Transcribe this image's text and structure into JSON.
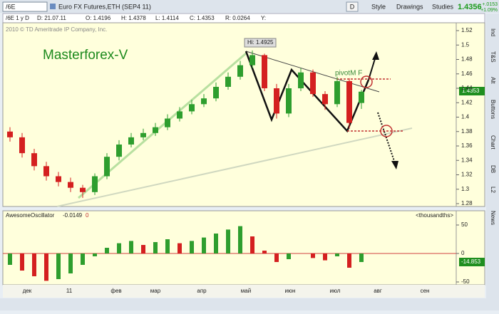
{
  "toolbar": {
    "symbol": "/6E",
    "description": "Euro FX Futures,ETH (SEP4 11)",
    "period": "D",
    "buttons": [
      "Style",
      "Drawings",
      "Studies"
    ],
    "last": "1.4356",
    "change": "+.0153",
    "change_pct": "+1.09%"
  },
  "info": {
    "items": [
      "/6E 1 y D",
      "D: 21.07.11",
      "O: 1.4196",
      "H: 1.4378",
      "L: 1.4114",
      "C: 1.4353",
      "R: 0.0264",
      "Y:"
    ]
  },
  "side_tabs": [
    "Ind",
    "T&S",
    "Alt",
    "Buttons",
    "Chart",
    "DB",
    "L2",
    "News"
  ],
  "chart_data": [
    {
      "type": "candlestick",
      "copyright": "2010 © TD Ameritrade IP Company, Inc.",
      "watermark": "Masterforex-V",
      "annotations": [
        "Hi: 1.4925",
        "pivotM F"
      ],
      "last_label": "1.4353",
      "categories": [
        null,
        null,
        null,
        null,
        null,
        null,
        null,
        null,
        null,
        null,
        null,
        null,
        null,
        null,
        null,
        null,
        null,
        null,
        null,
        null,
        null,
        null,
        null,
        null,
        null,
        null,
        null,
        null,
        null,
        null
      ],
      "open": [
        1.38,
        1.372,
        1.35,
        1.332,
        1.318,
        1.31,
        1.302,
        1.296,
        1.318,
        1.345,
        1.362,
        1.372,
        1.378,
        1.386,
        1.398,
        1.408,
        1.418,
        1.426,
        1.442,
        1.456,
        1.472,
        1.486,
        1.44,
        1.405,
        1.44,
        1.462,
        1.432,
        1.418,
        1.45,
        1.4196
      ],
      "high": [
        1.386,
        1.378,
        1.356,
        1.338,
        1.324,
        1.316,
        1.306,
        1.322,
        1.35,
        1.368,
        1.378,
        1.384,
        1.392,
        1.404,
        1.414,
        1.424,
        1.432,
        1.448,
        1.462,
        1.478,
        1.4925,
        1.488,
        1.446,
        1.446,
        1.468,
        1.466,
        1.436,
        1.456,
        1.454,
        1.4378
      ],
      "low": [
        1.366,
        1.344,
        1.326,
        1.312,
        1.304,
        1.296,
        1.288,
        1.292,
        1.314,
        1.34,
        1.358,
        1.368,
        1.374,
        1.382,
        1.394,
        1.404,
        1.414,
        1.422,
        1.438,
        1.452,
        1.468,
        1.436,
        1.398,
        1.4,
        1.436,
        1.428,
        1.41,
        1.414,
        1.384,
        1.4114
      ],
      "close": [
        1.372,
        1.35,
        1.332,
        1.318,
        1.31,
        1.302,
        1.296,
        1.318,
        1.345,
        1.362,
        1.372,
        1.378,
        1.386,
        1.398,
        1.408,
        1.418,
        1.426,
        1.442,
        1.456,
        1.472,
        1.486,
        1.44,
        1.405,
        1.44,
        1.462,
        1.432,
        1.418,
        1.45,
        1.392,
        1.4353
      ],
      "up_color": "#2e9e2e",
      "down_color": "#d42020",
      "ylim": [
        1.28,
        1.52
      ],
      "yticks": [
        1.52,
        1.5,
        1.48,
        1.46,
        1.44,
        1.42,
        1.4,
        1.38,
        1.36,
        1.34,
        1.32,
        1.3,
        1.28
      ],
      "x_labels": [
        "дек",
        "11",
        "фев",
        "мар",
        "апр",
        "май",
        "июн",
        "июл",
        "авг",
        "сен"
      ]
    },
    {
      "type": "bar",
      "title": "AwesomeOscillator",
      "indicator_value": "-0.0149",
      "zero_label": "0",
      "units": "<thousandths>",
      "last_label": "-14.853",
      "categories": [
        null,
        null,
        null,
        null,
        null,
        null,
        null,
        null,
        null,
        null,
        null,
        null,
        null,
        null,
        null,
        null,
        null,
        null,
        null,
        null,
        null,
        null,
        null,
        null,
        null,
        null,
        null,
        null,
        null,
        null
      ],
      "values": [
        -20,
        -30,
        -40,
        -48,
        -45,
        -35,
        -20,
        -5,
        10,
        18,
        22,
        15,
        20,
        25,
        18,
        22,
        28,
        35,
        42,
        48,
        30,
        5,
        -15,
        -10,
        0,
        -8,
        -12,
        -5,
        -25,
        -15
      ],
      "up_color": "#2e9e2e",
      "down_color": "#d42020",
      "ylim": [
        -50,
        50
      ],
      "yticks": [
        50,
        0,
        -50
      ]
    }
  ]
}
